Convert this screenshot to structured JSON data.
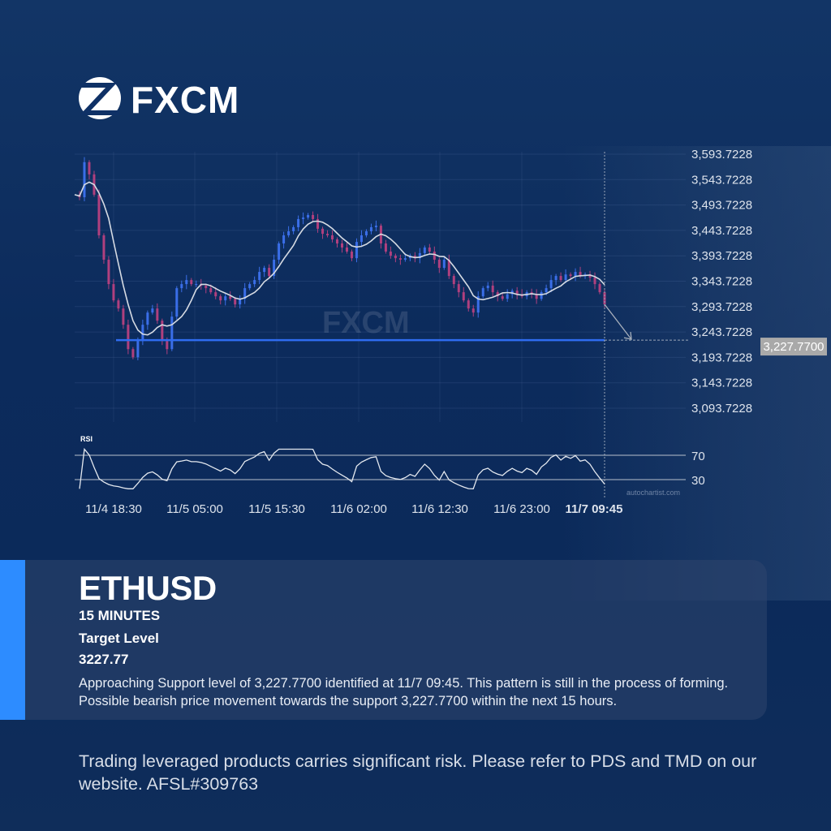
{
  "brand": {
    "name": "FXCM",
    "watermark": "FXCM"
  },
  "colors": {
    "up": "#3a6ee8",
    "down": "#b0407e",
    "support": "#2f6cf0",
    "accent": "#2d8cff",
    "ma": "#d6dbe3"
  },
  "chart_data": {
    "type": "candlestick",
    "title": "",
    "y_ticks": [
      "3,593.7228",
      "3,543.7228",
      "3,493.7228",
      "3,443.7228",
      "3,393.7228",
      "3,343.7228",
      "3,293.7228",
      "3,243.7228",
      "3,193.7228",
      "3,143.7228",
      "3,093.7228"
    ],
    "y_tick_values": [
      3593.7228,
      3543.7228,
      3493.7228,
      3443.7228,
      3393.7228,
      3343.7228,
      3293.7228,
      3243.7228,
      3193.7228,
      3143.7228,
      3093.7228
    ],
    "x_ticks": [
      "11/4 18:30",
      "11/5 05:00",
      "11/5 15:30",
      "11/6 02:00",
      "11/6 12:30",
      "11/6 23:00",
      "11/7 09:45"
    ],
    "closes": [
      3514,
      3509,
      3578,
      3554,
      3514,
      3434,
      3386,
      3338,
      3306,
      3290,
      3258,
      3210,
      3194,
      3226,
      3258,
      3282,
      3290,
      3266,
      3226,
      3210,
      3274,
      3330,
      3338,
      3346,
      3338,
      3338,
      3335,
      3330,
      3322,
      3314,
      3306,
      3314,
      3309,
      3298,
      3309,
      3330,
      3338,
      3346,
      3362,
      3370,
      3354,
      3386,
      3418,
      3434,
      3442,
      3450,
      3466,
      3469,
      3474,
      3466,
      3447,
      3437,
      3434,
      3426,
      3418,
      3410,
      3402,
      3389,
      3421,
      3434,
      3442,
      3450,
      3453,
      3418,
      3402,
      3394,
      3389,
      3386,
      3389,
      3394,
      3389,
      3399,
      3410,
      3402,
      3386,
      3370,
      3386,
      3354,
      3338,
      3322,
      3306,
      3290,
      3282,
      3314,
      3330,
      3335,
      3322,
      3314,
      3309,
      3318,
      3325,
      3318,
      3314,
      3322,
      3318,
      3309,
      3322,
      3330,
      3346,
      3354,
      3346,
      3357,
      3354,
      3362,
      3354,
      3357,
      3351,
      3338,
      3322,
      3298
    ],
    "support_level": 3227.77,
    "support_label": "3,227.7700",
    "forecast_direction": "bearish",
    "rsi": {
      "label": "RSI",
      "levels": [
        70,
        30
      ],
      "level_labels": [
        "70",
        "30"
      ]
    },
    "grid": true
  },
  "credit": "autochartist.com",
  "card": {
    "symbol": "ETHUSD",
    "timeframe": "15 MINUTES",
    "target_label": "Target Level",
    "target_value": "3227.77",
    "description": "Approaching Support level of 3,227.7700 identified at 11/7 09:45. This pattern is still in the process of forming. Possible bearish price movement towards the support 3,227.7700 within the next 15 hours."
  },
  "disclaimer": "Trading leveraged products carries significant risk. Please refer to PDS and TMD on our website. AFSL#309763"
}
